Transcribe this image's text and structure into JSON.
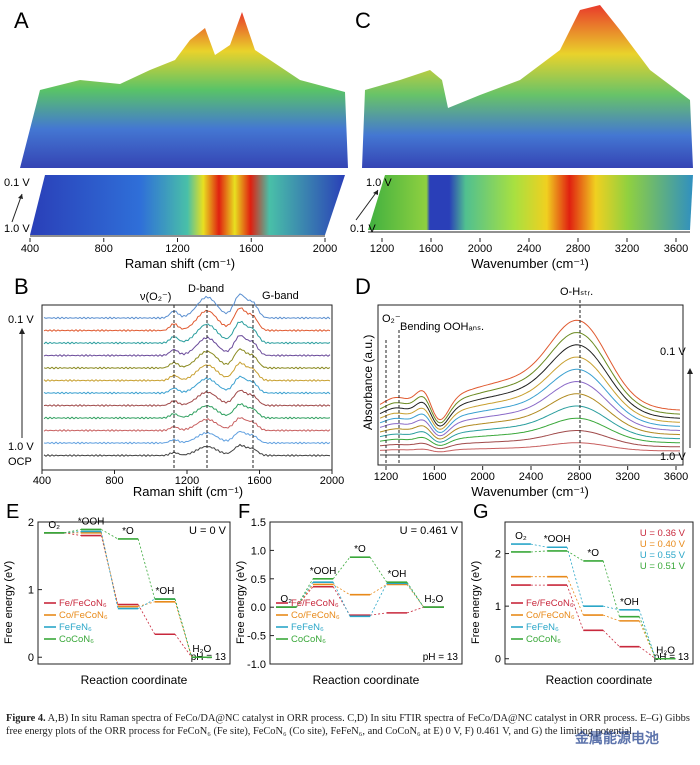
{
  "panels": {
    "A": {
      "letter": "A",
      "xlabel": "Raman shift (cm⁻¹)",
      "ticks": [
        "400",
        "800",
        "1200",
        "1600",
        "2000"
      ],
      "v_top": "0.1 V",
      "v_bot": "1.0 V"
    },
    "C": {
      "letter": "C",
      "xlabel": "Wavenumber (cm⁻¹)",
      "ticks": [
        "1200",
        "1600",
        "2000",
        "2400",
        "2800",
        "3200",
        "3600"
      ],
      "v_top": "1.0 V",
      "v_bot": "0.1 V"
    },
    "B": {
      "letter": "B",
      "xlabel": "Raman shift (cm⁻¹)",
      "ticks": [
        "400",
        "800",
        "1200",
        "1600",
        "2000"
      ],
      "label_o2": "ν(O₂⁻)",
      "label_d": "D-band",
      "label_g": "G-band",
      "v_top": "0.1 V",
      "v_bot": "1.0 V",
      "ocp": "OCP"
    },
    "D": {
      "letter": "D",
      "xlabel": "Wavenumber (cm⁻¹)",
      "ylabel": "Absorbance (a.u.)",
      "ticks": [
        "1200",
        "1600",
        "2000",
        "2400",
        "2800",
        "3200",
        "3600"
      ],
      "label_o2": "O₂⁻",
      "label_bend": "Bending OOHₐₙₛ.",
      "label_oh": "O-Hₛₜᵣ.",
      "v_top": "0.1 V",
      "v_bot": "1.0 V"
    }
  },
  "chart_data": [
    {
      "panel": "E",
      "type": "line",
      "letter": "E",
      "title": "U = 0 V",
      "xlabel": "Reaction coordinate",
      "ylabel": "Free energy (eV)",
      "ylim": [
        -0.1,
        2.0
      ],
      "yticks": [
        "0",
        "1",
        "2"
      ],
      "ph": "pH = 13",
      "steps": [
        "O2",
        "*OOH",
        "*O",
        "*OH",
        "H2O"
      ],
      "step_labels": [
        "O₂",
        "*OOH",
        "*O",
        "*OH",
        "H₂O"
      ],
      "series": [
        {
          "name": "Fe/FeCoN₆",
          "color": "#c8283c",
          "values": [
            1.84,
            1.8,
            0.78,
            0.34,
            0.0
          ]
        },
        {
          "name": "Co/FeCoN₆",
          "color": "#e88a1a",
          "values": [
            1.84,
            1.84,
            0.75,
            0.82,
            0.0
          ]
        },
        {
          "name": "FeFeN₆",
          "color": "#2aa6c8",
          "values": [
            1.84,
            1.86,
            0.72,
            0.86,
            0.0
          ]
        },
        {
          "name": "CoCoN₆",
          "color": "#3aa83a",
          "values": [
            1.84,
            1.89,
            1.75,
            0.86,
            0.0
          ]
        }
      ]
    },
    {
      "panel": "F",
      "type": "line",
      "letter": "F",
      "title": "U = 0.461 V",
      "xlabel": "Reaction coordinate",
      "ylabel": "Free energy (eV)",
      "ylim": [
        -1.0,
        1.5
      ],
      "yticks": [
        "-1.0",
        "-0.5",
        "0.0",
        "0.5",
        "1.0",
        "1.5"
      ],
      "ph": "pH = 13",
      "steps": [
        "O2",
        "*OOH",
        "*O",
        "*OH",
        "H2O"
      ],
      "step_labels": [
        "O₂",
        "*OOH",
        "*O",
        "*OH",
        "H₂O"
      ],
      "series": [
        {
          "name": "Fe/FeCoN₆",
          "color": "#c8283c",
          "values": [
            0.0,
            0.36,
            -0.14,
            -0.1,
            0.0
          ]
        },
        {
          "name": "Co/FeCoN₆",
          "color": "#e88a1a",
          "values": [
            0.0,
            0.4,
            0.22,
            0.4,
            0.0
          ]
        },
        {
          "name": "FeFeN₆",
          "color": "#2aa6c8",
          "values": [
            0.0,
            0.44,
            -0.16,
            0.42,
            0.0
          ]
        },
        {
          "name": "CoCoN₆",
          "color": "#3aa83a",
          "values": [
            0.0,
            0.5,
            0.88,
            0.44,
            0.0
          ]
        }
      ]
    },
    {
      "panel": "G",
      "type": "line",
      "letter": "G",
      "title": "",
      "xlabel": "Reaction coordinate",
      "ylabel": "Free energy (eV)",
      "ylim": [
        -0.1,
        2.6
      ],
      "yticks": [
        "0",
        "1",
        "2"
      ],
      "ph": "pH = 13",
      "steps": [
        "O2",
        "*OOH",
        "*O",
        "*OH",
        "H2O"
      ],
      "step_labels": [
        "O₂",
        "*OOH",
        "*O",
        "*OH",
        "H₂O"
      ],
      "legend_u": [
        {
          "text": "U = 0.36 V",
          "color": "#c8283c"
        },
        {
          "text": "U = 0.40 V",
          "color": "#e88a1a"
        },
        {
          "text": "U = 0.55 V",
          "color": "#2aa6c8"
        },
        {
          "text": "U = 0.51 V",
          "color": "#3aa83a"
        }
      ],
      "series": [
        {
          "name": "Fe/FeCoN₆",
          "color": "#c8283c",
          "values": [
            1.4,
            1.4,
            0.54,
            0.23,
            0.0
          ]
        },
        {
          "name": "Co/FeCoN₆",
          "color": "#e88a1a",
          "values": [
            1.56,
            1.56,
            0.83,
            0.72,
            0.0
          ]
        },
        {
          "name": "FeFeN₆",
          "color": "#2aa6c8",
          "values": [
            2.18,
            2.12,
            1.0,
            0.93,
            0.0
          ]
        },
        {
          "name": "CoCoN₆",
          "color": "#3aa83a",
          "values": [
            2.03,
            2.05,
            1.86,
            0.8,
            0.0
          ]
        }
      ]
    }
  ],
  "caption": {
    "lead": "Figure 4.",
    "text": "A,B) In situ Raman spectra of FeCo/DA@NC catalyst in ORR process. C,D) In situ FTIR spectra of FeCo/DA@NC catalyst in ORR process. E–G) Gibbs free energy plots of the ORR process for FeCoN₆ (Fe site), FeCoN₆ (Co site), FeFeN₆, and CoCoN₆ at E) 0 V, F) 0.461 V, and G) the limiting potential."
  },
  "watermark": "金属能源电池"
}
